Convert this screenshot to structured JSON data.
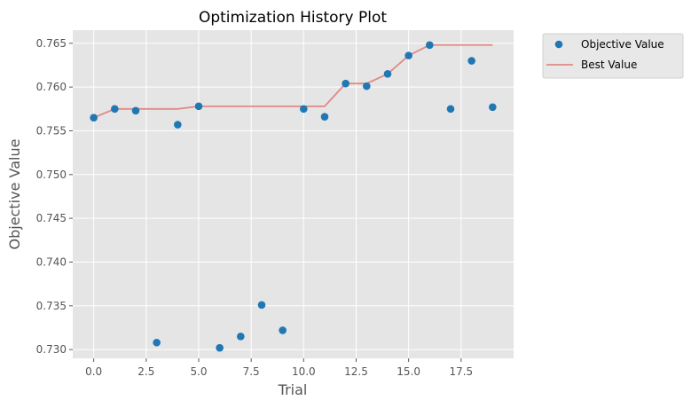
{
  "chart_data": {
    "type": "scatter",
    "title": "Optimization History Plot",
    "xlabel": "Trial",
    "ylabel": "Objective Value",
    "xlim": [
      -1,
      20
    ],
    "ylim": [
      0.729,
      0.7665
    ],
    "xticks": [
      0,
      2.5,
      5,
      7.5,
      10,
      12.5,
      15,
      17.5
    ],
    "xtick_labels": [
      "0.0",
      "2.5",
      "5.0",
      "7.5",
      "10.0",
      "12.5",
      "15.0",
      "17.5"
    ],
    "yticks": [
      0.73,
      0.735,
      0.74,
      0.745,
      0.75,
      0.755,
      0.76,
      0.765
    ],
    "ytick_labels": [
      "0.730",
      "0.735",
      "0.740",
      "0.745",
      "0.750",
      "0.755",
      "0.760",
      "0.765"
    ],
    "grid": true,
    "legend_placement": "outside-top-right",
    "series": [
      {
        "name": "Objective Value",
        "kind": "scatter",
        "color": "#1f77b4",
        "x": [
          0,
          1,
          2,
          3,
          4,
          5,
          6,
          7,
          8,
          9,
          10,
          11,
          12,
          13,
          14,
          15,
          16,
          17,
          18,
          19
        ],
        "y": [
          0.7565,
          0.7575,
          0.7573,
          0.7308,
          0.7557,
          0.7578,
          0.7302,
          0.7315,
          0.7351,
          0.7322,
          0.7575,
          0.7566,
          0.7604,
          0.7601,
          0.7615,
          0.7636,
          0.7648,
          0.7575,
          0.763,
          0.7577
        ]
      },
      {
        "name": "Best Value",
        "kind": "step-line",
        "color": "#e08a85",
        "x": [
          0,
          1,
          2,
          3,
          4,
          5,
          6,
          7,
          8,
          9,
          10,
          11,
          12,
          13,
          14,
          15,
          16,
          17,
          18,
          19
        ],
        "y": [
          0.7565,
          0.7575,
          0.7575,
          0.7575,
          0.7575,
          0.7578,
          0.7578,
          0.7578,
          0.7578,
          0.7578,
          0.7578,
          0.7578,
          0.7604,
          0.7604,
          0.7615,
          0.7636,
          0.7648,
          0.7648,
          0.7648,
          0.7648
        ]
      }
    ]
  }
}
